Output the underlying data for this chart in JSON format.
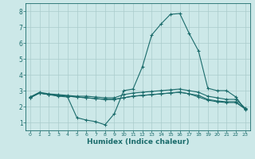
{
  "xlabel": "Humidex (Indice chaleur)",
  "bg_color": "#cce8e8",
  "grid_color": "#aacccc",
  "line_color": "#1a6b6b",
  "xlim": [
    -0.5,
    23.5
  ],
  "ylim": [
    0.5,
    8.5
  ],
  "xticks": [
    0,
    1,
    2,
    3,
    4,
    5,
    6,
    7,
    8,
    9,
    10,
    11,
    12,
    13,
    14,
    15,
    16,
    17,
    18,
    19,
    20,
    21,
    22,
    23
  ],
  "yticks": [
    1,
    2,
    3,
    4,
    5,
    6,
    7,
    8
  ],
  "line1_x": [
    0,
    1,
    2,
    3,
    4,
    5,
    6,
    7,
    8,
    9,
    10,
    11,
    12,
    13,
    14,
    15,
    16,
    17,
    18,
    19,
    20,
    21,
    22,
    23
  ],
  "line1_y": [
    2.6,
    2.85,
    2.75,
    2.65,
    2.6,
    1.3,
    1.15,
    1.05,
    0.85,
    1.55,
    3.0,
    3.1,
    4.5,
    6.5,
    7.2,
    7.8,
    7.85,
    6.6,
    5.5,
    3.15,
    3.0,
    3.0,
    2.6,
    1.8
  ],
  "line2_x": [
    0,
    1,
    2,
    3,
    4,
    5,
    6,
    7,
    8,
    9,
    10,
    11,
    12,
    13,
    14,
    15,
    16,
    17,
    18,
    19,
    20,
    21,
    22,
    23
  ],
  "line2_y": [
    2.6,
    2.9,
    2.8,
    2.75,
    2.7,
    2.65,
    2.65,
    2.6,
    2.55,
    2.55,
    2.75,
    2.85,
    2.9,
    2.95,
    3.0,
    3.05,
    3.1,
    3.0,
    2.9,
    2.65,
    2.55,
    2.45,
    2.45,
    1.9
  ],
  "line3_x": [
    0,
    1,
    2,
    3,
    4,
    5,
    6,
    7,
    8,
    9,
    10,
    11,
    12,
    13,
    14,
    15,
    16,
    17,
    18,
    19,
    20,
    21,
    22,
    23
  ],
  "line3_y": [
    2.55,
    2.85,
    2.75,
    2.7,
    2.65,
    2.6,
    2.55,
    2.5,
    2.45,
    2.45,
    2.55,
    2.65,
    2.7,
    2.75,
    2.8,
    2.85,
    2.9,
    2.8,
    2.7,
    2.45,
    2.35,
    2.3,
    2.3,
    1.85
  ],
  "line4_x": [
    0,
    1,
    2,
    3,
    4,
    5,
    6,
    7,
    8,
    9,
    10,
    11,
    12,
    13,
    14,
    15,
    16,
    17,
    18,
    19,
    20,
    21,
    22,
    23
  ],
  "line4_y": [
    2.55,
    2.85,
    2.75,
    2.7,
    2.65,
    2.6,
    2.55,
    2.5,
    2.45,
    2.45,
    2.55,
    2.65,
    2.7,
    2.75,
    2.8,
    2.85,
    2.9,
    2.8,
    2.6,
    2.4,
    2.3,
    2.25,
    2.25,
    1.85
  ]
}
